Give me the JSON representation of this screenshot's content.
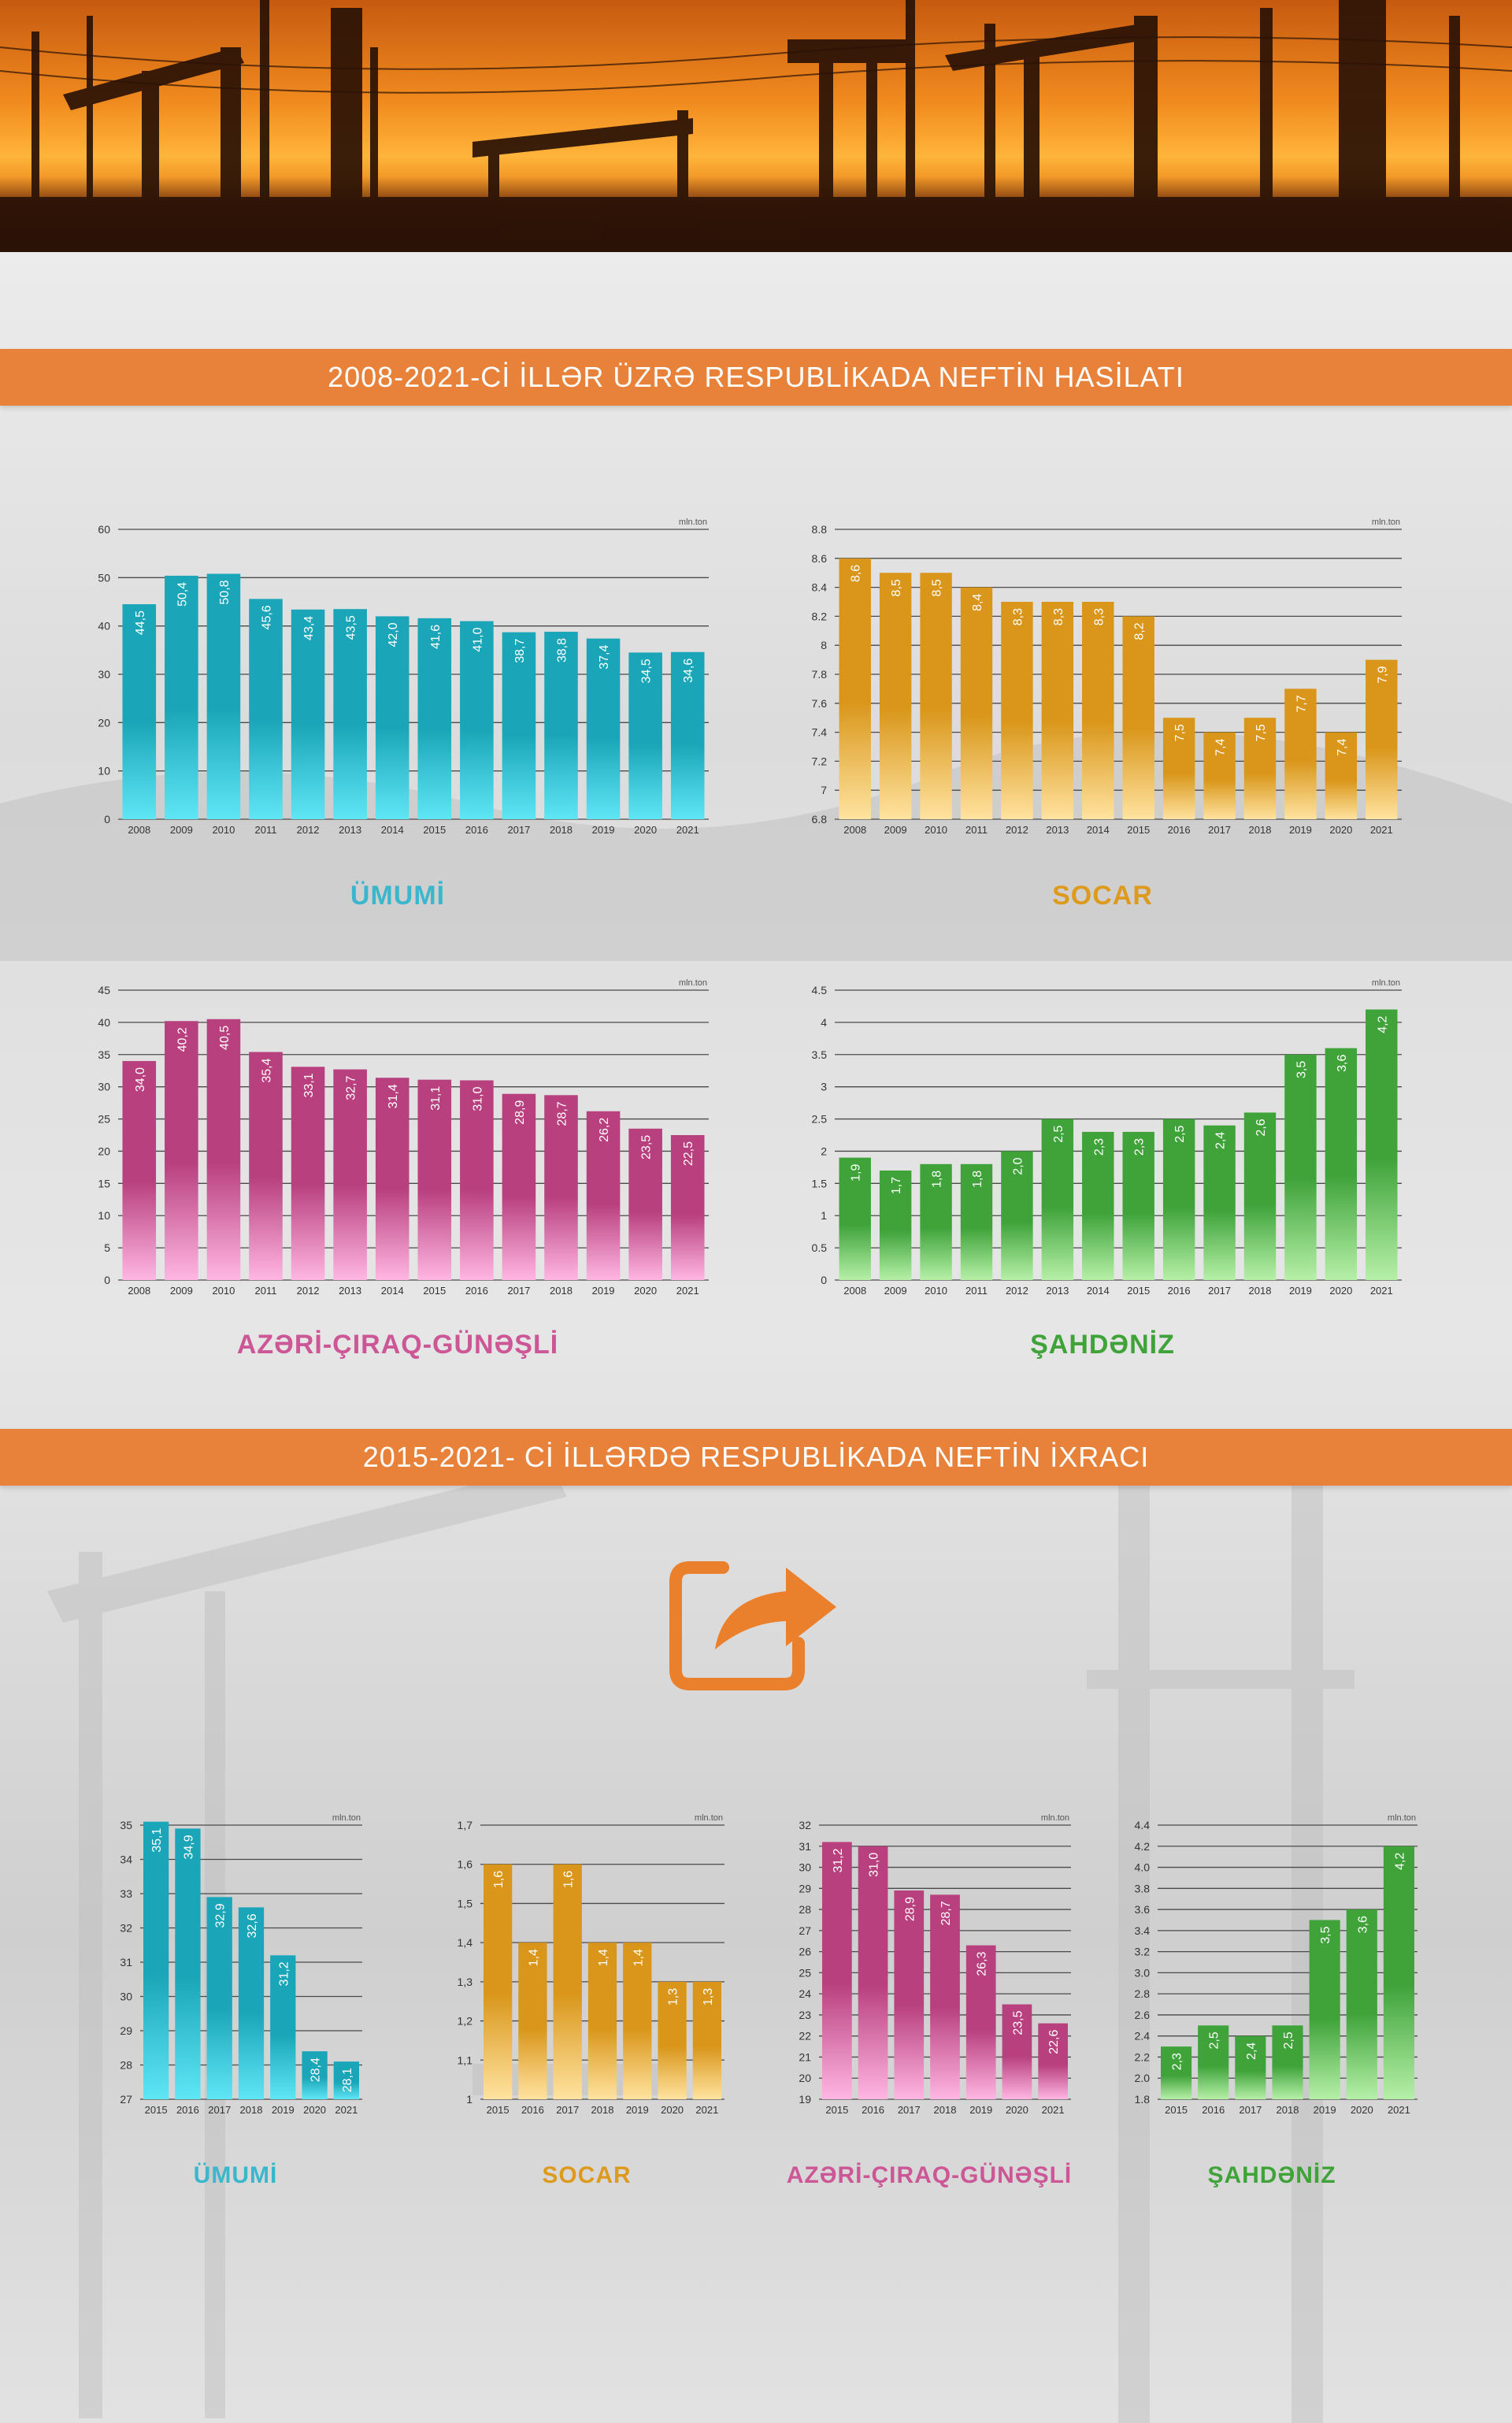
{
  "sections": {
    "production_title": "2008-2021-Cİ İLLƏR ÜZRƏ RESPUBLİKADA NEFTİN HASİLATI",
    "export_title": "2015-2021- Cİ İLLƏRDƏ RESPUBLİKADA NEFTİN İXRACI"
  },
  "icons": {
    "banner": "oil-pumpjack-banner",
    "export": "share-export-icon"
  },
  "colors": {
    "accent": "#e8823a",
    "umumi": "#1aa6b8",
    "socar": "#d9961a",
    "acg": "#b8407e",
    "shahdeniz": "#3fa33a"
  },
  "chart_data": [
    {
      "id": "prod-umumi",
      "type": "bar",
      "title": "ÜMUMİ",
      "unit": "mln.ton",
      "color_key": "umumi",
      "categories": [
        "2008",
        "2009",
        "2010",
        "2011",
        "2012",
        "2013",
        "2014",
        "2015",
        "2016",
        "2017",
        "2018",
        "2019",
        "2020",
        "2021"
      ],
      "values": [
        44.5,
        50.4,
        50.8,
        45.6,
        43.4,
        43.5,
        42.0,
        41.6,
        41.0,
        38.7,
        38.8,
        37.4,
        34.5,
        34.6
      ],
      "labels": [
        "44,5",
        "50,4",
        "50,8",
        "45,6",
        "43,4",
        "43,5",
        "42,0",
        "41,6",
        "41,0",
        "38,7",
        "38,8",
        "37,4",
        "34,5",
        "34,6"
      ],
      "ylim": [
        0,
        60
      ],
      "yticks": [
        "0",
        "10",
        "20",
        "30",
        "40",
        "50",
        "60"
      ]
    },
    {
      "id": "prod-socar",
      "type": "bar",
      "title": "SOCAR",
      "unit": "mln.ton",
      "color_key": "socar",
      "categories": [
        "2008",
        "2009",
        "2010",
        "2011",
        "2012",
        "2013",
        "2014",
        "2015",
        "2016",
        "2017",
        "2018",
        "2019",
        "2020",
        "2021"
      ],
      "values": [
        8.6,
        8.5,
        8.5,
        8.4,
        8.3,
        8.3,
        8.3,
        8.2,
        7.5,
        7.4,
        7.5,
        7.7,
        7.4,
        7.9
      ],
      "labels": [
        "8,6",
        "8,5",
        "8,5",
        "8,4",
        "8,3",
        "8,3",
        "8,3",
        "8,2",
        "7,5",
        "7,4",
        "7,5",
        "7,7",
        "7,4",
        "7,9"
      ],
      "ylim": [
        6.8,
        8.8
      ],
      "yticks": [
        "6.8",
        "7",
        "7.2",
        "7.4",
        "7.6",
        "7.8",
        "8",
        "8.2",
        "8.4",
        "8.6",
        "8.8"
      ]
    },
    {
      "id": "prod-acg",
      "type": "bar",
      "title": "AZƏRİ-ÇIRAQ-GÜNƏŞLİ",
      "unit": "mln.ton",
      "color_key": "acg",
      "categories": [
        "2008",
        "2009",
        "2010",
        "2011",
        "2012",
        "2013",
        "2014",
        "2015",
        "2016",
        "2017",
        "2018",
        "2019",
        "2020",
        "2021"
      ],
      "values": [
        34.0,
        40.2,
        40.5,
        35.4,
        33.1,
        32.7,
        31.4,
        31.1,
        31.0,
        28.9,
        28.7,
        26.2,
        23.5,
        22.5
      ],
      "labels": [
        "34,0",
        "40,2",
        "40,5",
        "35,4",
        "33,1",
        "32,7",
        "31,4",
        "31,1",
        "31,0",
        "28,9",
        "28,7",
        "26,2",
        "23,5",
        "22,5"
      ],
      "ylim": [
        0,
        45
      ],
      "yticks": [
        "0",
        "5",
        "10",
        "15",
        "20",
        "25",
        "30",
        "35",
        "40",
        "45"
      ]
    },
    {
      "id": "prod-shahdeniz",
      "type": "bar",
      "title": "ŞAHDƏNİZ",
      "unit": "mln.ton",
      "color_key": "shahdeniz",
      "categories": [
        "2008",
        "2009",
        "2010",
        "2011",
        "2012",
        "2013",
        "2014",
        "2015",
        "2016",
        "2017",
        "2018",
        "2019",
        "2020",
        "2021"
      ],
      "values": [
        1.9,
        1.7,
        1.8,
        1.8,
        2.0,
        2.5,
        2.3,
        2.3,
        2.5,
        2.4,
        2.6,
        3.5,
        3.6,
        4.2
      ],
      "labels": [
        "1,9",
        "1,7",
        "1,8",
        "1,8",
        "2,0",
        "2,5",
        "2,3",
        "2,3",
        "2,5",
        "2,4",
        "2,6",
        "3,5",
        "3,6",
        "4,2"
      ],
      "ylim": [
        0,
        4.5
      ],
      "yticks": [
        "0",
        "0.5",
        "1",
        "1.5",
        "2",
        "2.5",
        "3",
        "3.5",
        "4",
        "4.5"
      ]
    },
    {
      "id": "exp-umumi",
      "type": "bar",
      "title": "ÜMUMİ",
      "unit": "mln.ton",
      "color_key": "umumi",
      "categories": [
        "2015",
        "2016",
        "2017",
        "2018",
        "2019",
        "2020",
        "2021"
      ],
      "values": [
        35.1,
        34.9,
        32.9,
        32.6,
        31.2,
        28.4,
        28.1
      ],
      "labels": [
        "35,1",
        "34,9",
        "32,9",
        "32,6",
        "31,2",
        "28,4",
        "28,1"
      ],
      "ylim": [
        27,
        35
      ],
      "yticks": [
        "27",
        "28",
        "29",
        "30",
        "31",
        "32",
        "33",
        "34",
        "35"
      ]
    },
    {
      "id": "exp-socar",
      "type": "bar",
      "title": "SOCAR",
      "unit": "mln.ton",
      "color_key": "socar",
      "categories": [
        "2015",
        "2016",
        "2017",
        "2018",
        "2019",
        "2020",
        "2021"
      ],
      "values": [
        1.6,
        1.4,
        1.6,
        1.4,
        1.4,
        1.3,
        1.3
      ],
      "labels": [
        "1,6",
        "1,4",
        "1,6",
        "1,4",
        "1,4",
        "1,3",
        "1,3"
      ],
      "ylim": [
        1,
        1.7
      ],
      "yticks": [
        "1",
        "1,1",
        "1,2",
        "1,3",
        "1,4",
        "1,5",
        "1,6",
        "1,7"
      ]
    },
    {
      "id": "exp-acg",
      "type": "bar",
      "title": "AZƏRİ-ÇIRAQ-GÜNƏŞLİ",
      "unit": "mln.ton",
      "color_key": "acg",
      "categories": [
        "2015",
        "2016",
        "2017",
        "2018",
        "2019",
        "2020",
        "2021"
      ],
      "values": [
        31.2,
        31.0,
        28.9,
        28.7,
        26.3,
        23.5,
        22.6
      ],
      "labels": [
        "31,2",
        "31,0",
        "28,9",
        "28,7",
        "26,3",
        "23,5",
        "22,6"
      ],
      "ylim": [
        19,
        32
      ],
      "yticks": [
        "19",
        "20",
        "21",
        "22",
        "23",
        "24",
        "25",
        "26",
        "27",
        "28",
        "29",
        "30",
        "31",
        "32"
      ]
    },
    {
      "id": "exp-shahdeniz",
      "type": "bar",
      "title": "ŞAHDƏNİZ",
      "unit": "mln.ton",
      "color_key": "shahdeniz",
      "categories": [
        "2015",
        "2016",
        "2017",
        "2018",
        "2019",
        "2020",
        "2021"
      ],
      "values": [
        2.3,
        2.5,
        2.4,
        2.5,
        3.5,
        3.6,
        4.2
      ],
      "labels": [
        "2,3",
        "2,5",
        "2,4",
        "2,5",
        "3,5",
        "3,6",
        "4,2"
      ],
      "ylim": [
        1.8,
        4.4
      ],
      "yticks": [
        "1.8",
        "2.0",
        "2.2",
        "2.4",
        "2.6",
        "2.8",
        "3.0",
        "3.2",
        "3.4",
        "3.6",
        "3.8",
        "4.0",
        "4.2",
        "4.4"
      ]
    }
  ]
}
